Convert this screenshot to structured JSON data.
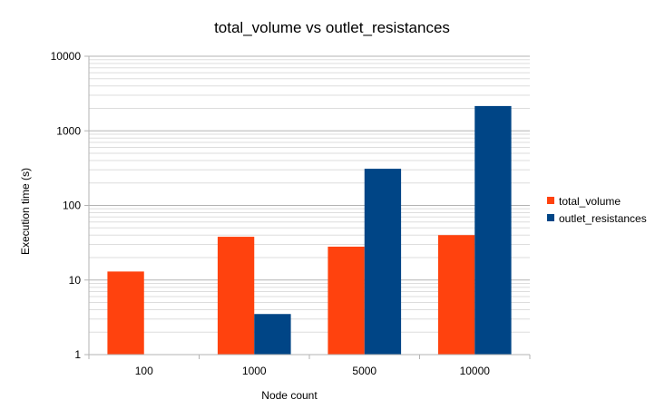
{
  "chart_data": {
    "type": "bar",
    "title": "total_volume vs outlet_resistances",
    "xlabel": "Node count",
    "ylabel": "Execution time (s)",
    "y_scale": "log",
    "ylim": [
      1,
      10000
    ],
    "y_ticks": [
      "1",
      "10",
      "100",
      "1000",
      "10000"
    ],
    "categories": [
      "100",
      "1000",
      "5000",
      "10000"
    ],
    "series": [
      {
        "name": "total_volume",
        "color": "#ff420e",
        "values": [
          13,
          38,
          28,
          40
        ]
      },
      {
        "name": "outlet_resistances",
        "color": "#004586",
        "values": [
          null,
          3.5,
          310,
          2150
        ]
      }
    ],
    "legend_position": "right",
    "grid": true
  }
}
